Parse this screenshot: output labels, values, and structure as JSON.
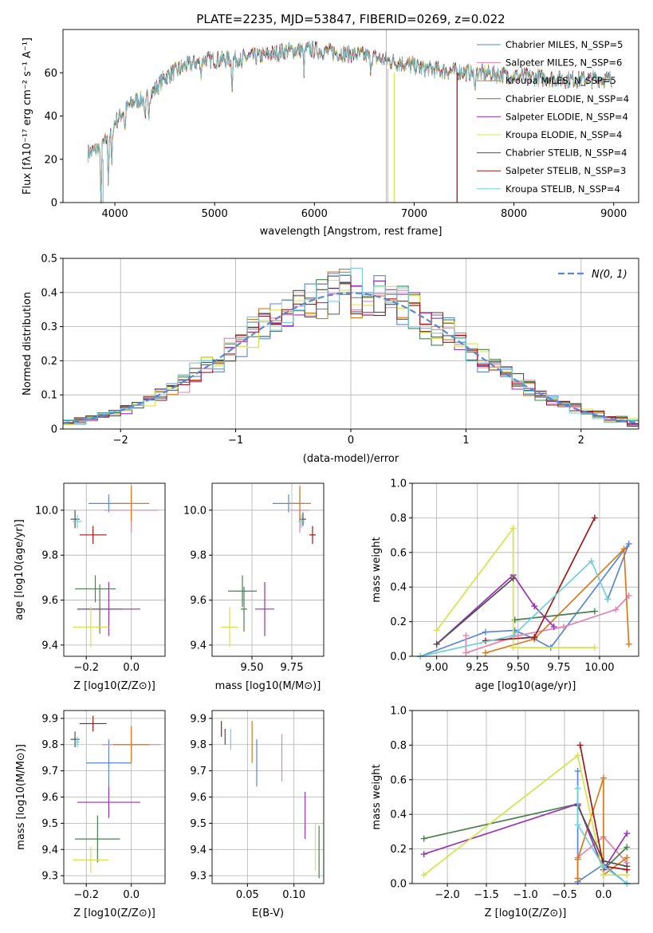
{
  "colors": {
    "Chabrier MILES": "#5a86d4",
    "Salpeter MILES": "#e484b0",
    "Kroupa MILES": "#d87a1c",
    "Chabrier ELODIE": "#4a8050",
    "Salpeter ELODIE": "#9a32b4",
    "Kroupa ELODIE": "#d4e44a",
    "Chabrier STELIB": "#505050",
    "Salpeter STELIB": "#a01818",
    "Kroupa STELIB": "#70d0d8",
    "gauss": "#5a86d4",
    "grid": "#b0b0b0"
  },
  "chart_data": [
    {
      "id": "spectrum",
      "type": "line",
      "title": "PLATE=2235, MJD=53847, FIBERID=0269, z=0.022",
      "xlabel": "wavelength [Angstrom, rest frame]",
      "ylabel": "Flux [fλ10⁻¹⁷ erg cm⁻² s⁻¹ A⁻¹]",
      "xlim": [
        3480,
        9250
      ],
      "ylim": [
        0,
        80
      ],
      "xticks": [
        "4000",
        "5000",
        "6000",
        "7000",
        "8000",
        "9000"
      ],
      "yticks": [
        "0",
        "20",
        "40",
        "60"
      ],
      "grid": false,
      "legend_position": "upper-right",
      "continuum": [
        [
          3730,
          23
        ],
        [
          3800,
          24
        ],
        [
          3900,
          28
        ],
        [
          4000,
          37
        ],
        [
          4100,
          43
        ],
        [
          4200,
          47
        ],
        [
          4300,
          48
        ],
        [
          4400,
          52
        ],
        [
          4500,
          58
        ],
        [
          4700,
          63
        ],
        [
          4900,
          66
        ],
        [
          5100,
          66
        ],
        [
          5300,
          67
        ],
        [
          5500,
          68
        ],
        [
          5700,
          70
        ],
        [
          5900,
          71
        ],
        [
          6100,
          70
        ],
        [
          6300,
          69
        ],
        [
          6500,
          68
        ],
        [
          6700,
          66
        ],
        [
          6900,
          64
        ],
        [
          7100,
          62
        ],
        [
          7300,
          61
        ],
        [
          7600,
          60
        ],
        [
          7900,
          59
        ],
        [
          8200,
          58
        ],
        [
          8500,
          57
        ],
        [
          8800,
          57
        ],
        [
          8980,
          57
        ]
      ],
      "absorption_features": [
        [
          3860,
          "deep"
        ],
        [
          3934,
          20
        ],
        [
          3969,
          18
        ],
        [
          4101,
          10
        ],
        [
          4304,
          12
        ],
        [
          4340,
          8
        ],
        [
          4861,
          6
        ],
        [
          5175,
          12
        ],
        [
          5270,
          6
        ],
        [
          5895,
          10
        ],
        [
          6563,
          5
        ],
        [
          7605,
          8
        ]
      ],
      "series": [
        {
          "name": "Chabrier MILES, N_SSP=5",
          "n_ssp": 5
        },
        {
          "name": "Salpeter MILES, N_SSP=6",
          "n_ssp": 6
        },
        {
          "name": "Kroupa MILES, N_SSP=5",
          "n_ssp": 5
        },
        {
          "name": "Chabrier ELODIE, N_SSP=4",
          "n_ssp": 4
        },
        {
          "name": "Salpeter ELODIE, N_SSP=4",
          "n_ssp": 4
        },
        {
          "name": "Kroupa ELODIE, N_SSP=4",
          "n_ssp": 4
        },
        {
          "name": "Chabrier STELIB, N_SSP=4",
          "n_ssp": 4
        },
        {
          "name": "Salpeter STELIB, N_SSP=3",
          "n_ssp": 3
        },
        {
          "name": "Kroupa STELIB, N_SSP=4",
          "n_ssp": 4
        }
      ]
    },
    {
      "id": "residuals",
      "type": "step",
      "xlabel": "(data-model)/error",
      "ylabel": "Normed distribution",
      "xlim": [
        -2.5,
        2.5
      ],
      "ylim": [
        0,
        0.5
      ],
      "xticks": [
        -2,
        -1,
        0,
        1,
        2
      ],
      "yticks": [
        0,
        0.1,
        0.2,
        0.3,
        0.4,
        0.5
      ],
      "grid": true,
      "legend_position": "upper-right",
      "legend_label": "N(0, 1)",
      "bin_width": 0.1,
      "bin_range": [
        -2.5,
        2.5
      ]
    },
    {
      "id": "age_vs_Z",
      "type": "errorbar",
      "xlabel": "Z [log10(Z/Z⊙)]",
      "ylabel": "age  [log10(age/yr)]",
      "xlim": [
        -0.3,
        0.15
      ],
      "ylim": [
        9.35,
        10.12
      ],
      "xticks": [
        "-0.2",
        "0.0"
      ],
      "yticks": [
        "9.4",
        "9.6",
        "9.8",
        "10.0"
      ],
      "points": [
        {
          "model": "Chabrier MILES",
          "x": -0.1,
          "xerr": 0.09,
          "y": 10.03,
          "yerr": 0.04
        },
        {
          "model": "Salpeter MILES",
          "x": 0.0,
          "xerr": 0.12,
          "y": 10.0,
          "yerr": 0.1
        },
        {
          "model": "Kroupa MILES",
          "x": 0.0,
          "xerr": 0.08,
          "y": 10.03,
          "yerr": 0.08
        },
        {
          "model": "Chabrier ELODIE",
          "x": -0.14,
          "xerr": 0.1,
          "y": 9.56,
          "yerr": 0.11
        },
        {
          "model": "Salpeter ELODIE",
          "x": -0.1,
          "xerr": 0.14,
          "y": 9.56,
          "yerr": 0.12
        },
        {
          "model": "Kroupa ELODIE",
          "x": -0.18,
          "xerr": 0.08,
          "y": 9.48,
          "yerr": 0.09
        },
        {
          "model": "Chabrier STELIB",
          "x": -0.25,
          "xerr": 0.02,
          "y": 9.96,
          "yerr": 0.04
        },
        {
          "model": "Salpeter STELIB",
          "x": -0.17,
          "xerr": 0.06,
          "y": 9.89,
          "yerr": 0.04
        },
        {
          "model": "Kroupa STELIB",
          "x": -0.24,
          "xerr": 0.02,
          "y": 9.95,
          "yerr": 0.03
        },
        {
          "model": "Chabrier ELODIE",
          "x": -0.16,
          "xerr": 0.09,
          "y": 9.65,
          "yerr": 0.06
        }
      ]
    },
    {
      "id": "age_vs_mass",
      "type": "errorbar",
      "xlabel": "mass [log10(M/M⊙)]",
      "ylabel": "",
      "xlim": [
        9.25,
        9.95
      ],
      "ylim": [
        9.35,
        10.12
      ],
      "xticks": [
        "9.50",
        "9.75"
      ],
      "yticks": [
        "9.4",
        "9.6",
        "9.8",
        "10.0"
      ],
      "points": [
        {
          "model": "Chabrier MILES",
          "x": 9.73,
          "xerr": 0.1,
          "y": 10.03,
          "yerr": 0.04
        },
        {
          "model": "Salpeter MILES",
          "x": 9.8,
          "xerr": 0.06,
          "y": 10.0,
          "yerr": 0.1
        },
        {
          "model": "Kroupa MILES",
          "x": 9.8,
          "xerr": 0.07,
          "y": 10.03,
          "yerr": 0.08
        },
        {
          "model": "Chabrier ELODIE",
          "x": 9.44,
          "xerr": 0.09,
          "y": 9.64,
          "yerr": 0.07
        },
        {
          "model": "Salpeter ELODIE",
          "x": 9.58,
          "xerr": 0.06,
          "y": 9.56,
          "yerr": 0.12
        },
        {
          "model": "Kroupa ELODIE",
          "x": 9.36,
          "xerr": 0.05,
          "y": 9.48,
          "yerr": 0.09
        },
        {
          "model": "Chabrier STELIB",
          "x": 9.82,
          "xerr": 0.02,
          "y": 9.96,
          "yerr": 0.03
        },
        {
          "model": "Salpeter STELIB",
          "x": 9.88,
          "xerr": 0.02,
          "y": 9.89,
          "yerr": 0.04
        },
        {
          "model": "Kroupa STELIB",
          "x": 9.81,
          "xerr": 0.02,
          "y": 9.95,
          "yerr": 0.03
        },
        {
          "model": "Chabrier ELODIE",
          "x": 9.45,
          "xerr": 0.02,
          "y": 9.56,
          "yerr": 0.1
        }
      ]
    },
    {
      "id": "weight_vs_age",
      "type": "line",
      "xlabel": "age  [log10(age/yr)]",
      "ylabel": "mass weight",
      "xlim": [
        8.85,
        10.24
      ],
      "ylim": [
        0,
        1.0
      ],
      "xticks": [
        "9.00",
        "9.25",
        "9.50",
        "9.75",
        "10.00"
      ],
      "yticks": [
        "0.0",
        "0.2",
        "0.4",
        "0.6",
        "0.8",
        "1.0"
      ],
      "grid": true,
      "series": [
        {
          "model": "Chabrier MILES",
          "points": [
            [
              8.9,
              0.0
            ],
            [
              9.3,
              0.14
            ],
            [
              9.48,
              0.15
            ],
            [
              9.6,
              0.1
            ],
            [
              9.7,
              0.05
            ],
            [
              10.18,
              0.65
            ],
            [
              10.05,
              0.33
            ]
          ]
        },
        {
          "model": "Salpeter MILES",
          "points": [
            [
              9.18,
              0.12
            ],
            [
              9.18,
              0.02
            ],
            [
              9.5,
              0.12
            ],
            [
              9.78,
              0.17
            ],
            [
              10.1,
              0.27
            ],
            [
              10.18,
              0.35
            ]
          ]
        },
        {
          "model": "Kroupa MILES",
          "points": [
            [
              9.3,
              0.02
            ],
            [
              9.6,
              0.1
            ],
            [
              10.15,
              0.62
            ],
            [
              10.18,
              0.07
            ]
          ]
        },
        {
          "model": "Chabrier ELODIE",
          "points": [
            [
              9.48,
              0.21
            ],
            [
              9.97,
              0.26
            ]
          ]
        },
        {
          "model": "Salpeter ELODIE",
          "points": [
            [
              9.0,
              0.07
            ],
            [
              9.47,
              0.47
            ],
            [
              9.6,
              0.29
            ],
            [
              9.72,
              0.17
            ]
          ]
        },
        {
          "model": "Kroupa ELODIE",
          "points": [
            [
              9.0,
              0.15
            ],
            [
              9.47,
              0.74
            ],
            [
              9.47,
              0.05
            ],
            [
              9.97,
              0.05
            ]
          ]
        },
        {
          "model": "Chabrier STELIB",
          "points": [
            [
              9.0,
              0.07
            ],
            [
              9.47,
              0.45
            ]
          ]
        },
        {
          "model": "Salpeter STELIB",
          "points": [
            [
              9.3,
              0.09
            ],
            [
              9.6,
              0.11
            ],
            [
              9.97,
              0.8
            ]
          ]
        },
        {
          "model": "Kroupa STELIB",
          "points": [
            [
              8.9,
              0.0
            ],
            [
              9.47,
              0.12
            ],
            [
              9.95,
              0.55
            ],
            [
              10.05,
              0.33
            ]
          ]
        }
      ]
    },
    {
      "id": "mass_vs_Z",
      "type": "errorbar",
      "xlabel": "Z [log10(Z/Z⊙)]",
      "ylabel": "mass [log10(M/M⊙)]",
      "xlim": [
        -0.3,
        0.15
      ],
      "ylim": [
        9.27,
        9.93
      ],
      "xticks": [
        "-0.2",
        "0.0"
      ],
      "yticks": [
        "9.3",
        "9.4",
        "9.5",
        "9.6",
        "9.7",
        "9.8",
        "9.9"
      ],
      "points": [
        {
          "model": "Chabrier MILES",
          "x": -0.1,
          "xerr": 0.1,
          "y": 9.73,
          "yerr": 0.09
        },
        {
          "model": "Salpeter MILES",
          "x": 0.0,
          "xerr": 0.13,
          "y": 9.8,
          "yerr": 0.06
        },
        {
          "model": "Kroupa MILES",
          "x": 0.0,
          "xerr": 0.08,
          "y": 9.8,
          "yerr": 0.07
        },
        {
          "model": "Chabrier ELODIE",
          "x": -0.15,
          "xerr": 0.1,
          "y": 9.44,
          "yerr": 0.09
        },
        {
          "model": "Salpeter ELODIE",
          "x": -0.1,
          "xerr": 0.14,
          "y": 9.58,
          "yerr": 0.06
        },
        {
          "model": "Kroupa ELODIE",
          "x": -0.18,
          "xerr": 0.08,
          "y": 9.36,
          "yerr": 0.05
        },
        {
          "model": "Chabrier STELIB",
          "x": -0.25,
          "xerr": 0.02,
          "y": 9.82,
          "yerr": 0.03
        },
        {
          "model": "Salpeter STELIB",
          "x": -0.17,
          "xerr": 0.06,
          "y": 9.88,
          "yerr": 0.03
        },
        {
          "model": "Kroupa STELIB",
          "x": -0.24,
          "xerr": 0.01,
          "y": 9.81,
          "yerr": 0.02
        }
      ]
    },
    {
      "id": "mass_vs_ebv",
      "type": "errorbar",
      "xlabel": "E(B-V)",
      "ylabel": "",
      "xlim": [
        0.012,
        0.132
      ],
      "ylim": [
        9.27,
        9.93
      ],
      "xticks": [
        "0.05",
        "0.10"
      ],
      "yticks": [
        "9.3",
        "9.4",
        "9.5",
        "9.6",
        "9.7",
        "9.8",
        "9.9"
      ],
      "points": [
        {
          "model": "Chabrier MILES",
          "x": 0.06,
          "y": 9.73,
          "yerr": 0.09
        },
        {
          "model": "Salpeter MILES",
          "x": 0.087,
          "y": 9.75,
          "yerr": 0.09
        },
        {
          "model": "Kroupa MILES",
          "x": 0.055,
          "y": 9.81,
          "yerr": 0.08
        },
        {
          "model": "Chabrier ELODIE",
          "x": 0.127,
          "y": 9.39,
          "yerr": 0.1
        },
        {
          "model": "Salpeter ELODIE",
          "x": 0.112,
          "y": 9.53,
          "yerr": 0.09
        },
        {
          "model": "Kroupa ELODIE",
          "x": 0.123,
          "y": 9.41,
          "yerr": 0.09
        },
        {
          "model": "Chabrier STELIB",
          "x": 0.026,
          "y": 9.83,
          "yerr": 0.03
        },
        {
          "model": "Salpeter STELIB",
          "x": 0.022,
          "y": 9.86,
          "yerr": 0.03
        },
        {
          "model": "Kroupa STELIB",
          "x": 0.032,
          "y": 9.82,
          "yerr": 0.04
        }
      ]
    },
    {
      "id": "weight_vs_Z",
      "type": "line",
      "xlabel": "Z [log10(Z/Z⊙)]",
      "ylabel": "mass weight",
      "xlim": [
        -2.45,
        0.45
      ],
      "ylim": [
        0,
        1.0
      ],
      "xticks": [
        "-2.0",
        "-1.5",
        "-1.0",
        "-0.5",
        "0.0"
      ],
      "yticks": [
        "0.0",
        "0.2",
        "0.4",
        "0.6",
        "0.8",
        "1.0"
      ],
      "grid": true,
      "series": [
        {
          "model": "Chabrier MILES",
          "points": [
            [
              -0.33,
              0.65
            ],
            [
              -0.33,
              0.01
            ],
            [
              0.0,
              0.11
            ],
            [
              0.3,
              0.0
            ]
          ]
        },
        {
          "model": "Salpeter MILES",
          "points": [
            [
              -0.33,
              0.15
            ],
            [
              0.0,
              0.27
            ],
            [
              0.3,
              0.12
            ]
          ]
        },
        {
          "model": "Kroupa MILES",
          "points": [
            [
              -0.33,
              0.03
            ],
            [
              -0.33,
              0.14
            ],
            [
              0.0,
              0.61
            ],
            [
              0.0,
              0.05
            ],
            [
              0.3,
              0.15
            ]
          ]
        },
        {
          "model": "Chabrier ELODIE",
          "points": [
            [
              -2.3,
              0.26
            ],
            [
              -0.33,
              0.46
            ],
            [
              0.0,
              0.08
            ],
            [
              0.3,
              0.21
            ]
          ]
        },
        {
          "model": "Salpeter ELODIE",
          "points": [
            [
              -2.3,
              0.17
            ],
            [
              -0.33,
              0.46
            ],
            [
              0.0,
              0.08
            ],
            [
              0.3,
              0.29
            ]
          ]
        },
        {
          "model": "Kroupa ELODIE",
          "points": [
            [
              -2.3,
              0.05
            ],
            [
              -0.33,
              0.74
            ],
            [
              0.0,
              0.05
            ],
            [
              0.3,
              0.05
            ]
          ]
        },
        {
          "model": "Chabrier STELIB",
          "points": [
            [
              -0.33,
              0.45
            ],
            [
              0.0,
              0.13
            ],
            [
              0.3,
              0.1
            ]
          ]
        },
        {
          "model": "Salpeter STELIB",
          "points": [
            [
              -0.3,
              0.8
            ],
            [
              0.0,
              0.1
            ],
            [
              0.3,
              0.08
            ]
          ]
        },
        {
          "model": "Kroupa STELIB",
          "points": [
            [
              -0.33,
              0.55
            ],
            [
              -0.33,
              0.34
            ],
            [
              0.0,
              0.1
            ],
            [
              0.3,
              0.0
            ]
          ]
        }
      ]
    }
  ]
}
